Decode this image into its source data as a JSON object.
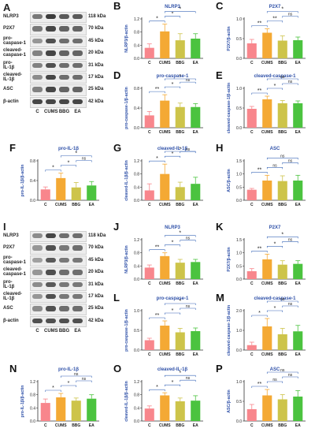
{
  "colors": {
    "C": "#f8868c",
    "CUMS": "#f4a934",
    "BBG": "#cdc44a",
    "EA": "#4bc33f",
    "sig_line": "#3a67b8",
    "title": "#2e50a8",
    "axis_label": "#2e50a8"
  },
  "western_blot_1": {
    "letter": "A",
    "labels": [
      "NLRP3",
      "P2X7",
      "pro-caspase-1",
      "cleaved-caspase-1",
      "pro-IL-1β",
      "cleaved-IL-1β",
      "ASC",
      "β-actin"
    ],
    "label_lines": [
      [
        "NLRP3"
      ],
      [
        "P2X7"
      ],
      [
        "pro-",
        "caspase-1"
      ],
      [
        "cleaved-",
        "caspase-1"
      ],
      [
        "pro-",
        "IL-1β"
      ],
      [
        "cleaved-",
        "IL-1β"
      ],
      [
        "ASC"
      ],
      [
        "β-actin"
      ]
    ],
    "kda": [
      "118 kDa",
      "70 kDa",
      "45 kDa",
      "20 kDa",
      "31 kDa",
      "17 kDa",
      "25 kDa",
      "42 kDa"
    ],
    "lanes": [
      "C",
      "CUMS",
      "BBG",
      "EA"
    ],
    "intensities": [
      [
        0.55,
        0.85,
        0.7,
        0.7
      ],
      [
        0.55,
        0.8,
        0.65,
        0.65
      ],
      [
        0.4,
        0.75,
        0.6,
        0.6
      ],
      [
        0.5,
        0.8,
        0.65,
        0.65
      ],
      [
        0.5,
        0.75,
        0.6,
        0.6
      ],
      [
        0.45,
        0.8,
        0.6,
        0.6
      ],
      [
        0.5,
        0.8,
        0.65,
        0.65
      ],
      [
        0.8,
        0.8,
        0.8,
        0.8
      ]
    ]
  },
  "western_blot_2": {
    "letter": "I",
    "labels": [
      "NLRP3",
      "P2X7",
      "pro-caspase-1",
      "cleaved-caspase-1",
      "pro-IL-1β",
      "cleaved-IL-1β",
      "ASC",
      "β-actin"
    ],
    "label_lines": [
      [
        "NLRP3"
      ],
      [
        "P2X7"
      ],
      [
        "pro-",
        "caspase-1"
      ],
      [
        "cleaved-",
        "caspase-1"
      ],
      [
        "pro-",
        "IL-1β"
      ],
      [
        "cleaved-",
        "IL-1β"
      ],
      [
        "ASC"
      ],
      [
        "β-actin"
      ]
    ],
    "kda": [
      "118 kDa",
      "70 kDa",
      "45 kDa",
      "20 kDa",
      "31 kDa",
      "17 kDa",
      "25 kDa",
      "42 kDa"
    ],
    "lanes": [
      "C",
      "CUMS",
      "BBG",
      "EA"
    ],
    "intensities": [
      [
        0.45,
        0.8,
        0.6,
        0.6
      ],
      [
        0.4,
        0.75,
        0.55,
        0.6
      ],
      [
        0.35,
        0.7,
        0.55,
        0.55
      ],
      [
        0.4,
        0.75,
        0.6,
        0.6
      ],
      [
        0.45,
        0.7,
        0.55,
        0.55
      ],
      [
        0.4,
        0.75,
        0.55,
        0.55
      ],
      [
        0.45,
        0.75,
        0.6,
        0.6
      ],
      [
        0.75,
        0.75,
        0.75,
        0.75
      ]
    ]
  },
  "chart_data": [
    {
      "letter": "B",
      "type": "bar",
      "title": "NLRP3",
      "ylabel": "NLRP3/β-actin",
      "categories": [
        "C",
        "CUMS",
        "BBG",
        "EA"
      ],
      "values": [
        0.32,
        0.82,
        0.55,
        0.6
      ],
      "errors": [
        0.12,
        0.22,
        0.2,
        0.15
      ],
      "ylim": [
        0,
        1.2
      ],
      "yticks": [
        0.0,
        0.4,
        0.8,
        1.2
      ],
      "sig": [
        {
          "a": 0,
          "b": 1,
          "label": "*"
        },
        {
          "a": 1,
          "b": 2,
          "label": "*"
        },
        {
          "a": 1,
          "b": 3,
          "label": "*"
        }
      ]
    },
    {
      "letter": "C",
      "type": "bar",
      "title": "P2X7",
      "ylabel": "P2X7/β-actin",
      "categories": [
        "C",
        "CUMS",
        "BBG",
        "EA"
      ],
      "values": [
        0.38,
        0.65,
        0.45,
        0.46
      ],
      "errors": [
        0.1,
        0.1,
        0.12,
        0.08
      ],
      "ylim": [
        0,
        1.0
      ],
      "yticks": [
        0.0,
        0.5,
        1.0
      ],
      "sig": [
        {
          "a": 0,
          "b": 1,
          "label": "**"
        },
        {
          "a": 1,
          "b": 2,
          "label": "**"
        },
        {
          "a": 2,
          "b": 3,
          "label": "ns"
        },
        {
          "a": 1,
          "b": 3,
          "label": "*"
        }
      ]
    },
    {
      "letter": "D",
      "type": "bar",
      "title": "pro-caspase-1",
      "ylabel": "pro-caspase-1/β-actin",
      "categories": [
        "C",
        "CUMS",
        "BBG",
        "EA"
      ],
      "values": [
        0.25,
        0.55,
        0.42,
        0.42
      ],
      "errors": [
        0.08,
        0.12,
        0.08,
        0.07
      ],
      "ylim": [
        0,
        0.8
      ],
      "yticks": [
        0.0,
        0.4,
        0.8
      ],
      "sig": [
        {
          "a": 0,
          "b": 1,
          "label": "**"
        },
        {
          "a": 1,
          "b": 2,
          "label": "*"
        },
        {
          "a": 2,
          "b": 3,
          "label": "ns"
        },
        {
          "a": 1,
          "b": 3,
          "label": "*"
        }
      ]
    },
    {
      "letter": "E",
      "type": "bar",
      "title": "cleaved-caspase-1",
      "ylabel": "cleaved-caspase-1/β-actin",
      "categories": [
        "C",
        "CUMS",
        "BBG",
        "EA"
      ],
      "values": [
        0.48,
        0.72,
        0.62,
        0.62
      ],
      "errors": [
        0.06,
        0.08,
        0.07,
        0.06
      ],
      "ylim": [
        0,
        1.0
      ],
      "yticks": [
        0.0,
        0.5,
        1.0
      ],
      "sig": [
        {
          "a": 0,
          "b": 1,
          "label": "**"
        },
        {
          "a": 1,
          "b": 2,
          "label": "*"
        },
        {
          "a": 2,
          "b": 3,
          "label": "ns"
        },
        {
          "a": 1,
          "b": 3,
          "label": "ns"
        }
      ]
    },
    {
      "letter": "F",
      "type": "bar",
      "title": "pro-IL-1β",
      "ylabel": "pro-IL-1β/β-actin",
      "categories": [
        "C",
        "CUMS",
        "BBG",
        "EA"
      ],
      "values": [
        0.22,
        0.45,
        0.26,
        0.3
      ],
      "errors": [
        0.05,
        0.1,
        0.1,
        0.08
      ],
      "ylim": [
        0,
        0.8
      ],
      "yticks": [
        0.0,
        0.4,
        0.8
      ],
      "sig": [
        {
          "a": 0,
          "b": 1,
          "label": "*"
        },
        {
          "a": 1,
          "b": 2,
          "label": "*"
        },
        {
          "a": 2,
          "b": 3,
          "label": "ns"
        },
        {
          "a": 1,
          "b": 3,
          "label": "*"
        }
      ]
    },
    {
      "letter": "G",
      "type": "bar",
      "title": "cleaved-IL-1β",
      "ylabel": "cleaved-IL-1β/β-actin",
      "categories": [
        "C",
        "CUMS",
        "BBG",
        "EA"
      ],
      "values": [
        0.3,
        0.8,
        0.4,
        0.5
      ],
      "errors": [
        0.2,
        0.3,
        0.15,
        0.2
      ],
      "ylim": [
        0,
        1.2
      ],
      "yticks": [
        0.0,
        0.4,
        0.8,
        1.2
      ],
      "sig": [
        {
          "a": 0,
          "b": 1,
          "label": "*"
        },
        {
          "a": 1,
          "b": 2,
          "label": "*"
        },
        {
          "a": 2,
          "b": 3,
          "label": "ns"
        },
        {
          "a": 1,
          "b": 3,
          "label": "*"
        }
      ]
    },
    {
      "letter": "H",
      "type": "bar",
      "title": "ASC",
      "ylabel": "ASC/β-actin",
      "categories": [
        "C",
        "CUMS",
        "BBG",
        "EA"
      ],
      "values": [
        0.4,
        0.75,
        0.73,
        0.75
      ],
      "errors": [
        0.05,
        0.2,
        0.2,
        0.2
      ],
      "ylim": [
        0,
        1.5
      ],
      "yticks": [
        0.0,
        0.5,
        1.0,
        1.5
      ],
      "sig": [
        {
          "a": 0,
          "b": 1,
          "label": "**"
        },
        {
          "a": 1,
          "b": 2,
          "label": "ns"
        },
        {
          "a": 2,
          "b": 3,
          "label": "ns"
        },
        {
          "a": 1,
          "b": 3,
          "label": "ns"
        }
      ]
    },
    {
      "letter": "J",
      "type": "bar",
      "title": "NLRP3",
      "ylabel": "NLRP3/β-actin",
      "categories": [
        "C",
        "CUMS",
        "BBG",
        "EA"
      ],
      "values": [
        0.35,
        0.7,
        0.5,
        0.52
      ],
      "errors": [
        0.08,
        0.1,
        0.1,
        0.08
      ],
      "ylim": [
        0,
        1.2
      ],
      "yticks": [
        0.0,
        0.4,
        0.8,
        1.2
      ],
      "sig": [
        {
          "a": 0,
          "b": 1,
          "label": "**"
        },
        {
          "a": 1,
          "b": 2,
          "label": "*"
        },
        {
          "a": 2,
          "b": 3,
          "label": "ns"
        },
        {
          "a": 1,
          "b": 3,
          "label": "*"
        }
      ]
    },
    {
      "letter": "K",
      "type": "bar",
      "title": "P2X7",
      "ylabel": "P2X7/β-actin",
      "categories": [
        "C",
        "CUMS",
        "BBG",
        "EA"
      ],
      "values": [
        0.3,
        0.75,
        0.55,
        0.58
      ],
      "errors": [
        0.1,
        0.2,
        0.15,
        0.12
      ],
      "ylim": [
        0,
        1.5
      ],
      "yticks": [
        0.0,
        0.5,
        1.0,
        1.5
      ],
      "sig": [
        {
          "a": 0,
          "b": 1,
          "label": "**"
        },
        {
          "a": 1,
          "b": 2,
          "label": "*"
        },
        {
          "a": 2,
          "b": 3,
          "label": "ns"
        },
        {
          "a": 1,
          "b": 3,
          "label": "*"
        }
      ]
    },
    {
      "letter": "L",
      "type": "bar",
      "title": "pro-caspase-1",
      "ylabel": "pro-caspase-1/β-actin",
      "categories": [
        "C",
        "CUMS",
        "BBG",
        "EA"
      ],
      "values": [
        0.25,
        0.62,
        0.45,
        0.48
      ],
      "errors": [
        0.05,
        0.12,
        0.1,
        0.08
      ],
      "ylim": [
        0,
        1.0
      ],
      "yticks": [
        0.0,
        0.5,
        1.0
      ],
      "sig": [
        {
          "a": 0,
          "b": 1,
          "label": "**"
        },
        {
          "a": 1,
          "b": 2,
          "label": "*"
        },
        {
          "a": 2,
          "b": 3,
          "label": "ns"
        },
        {
          "a": 1,
          "b": 3,
          "label": "*"
        }
      ]
    },
    {
      "letter": "M",
      "type": "bar",
      "title": "cleaved-caspase-1",
      "ylabel": "cleaved-caspase-1/β-actin",
      "categories": [
        "C",
        "CUMS",
        "BBG",
        "EA"
      ],
      "values": [
        0.25,
        1.2,
        0.8,
        0.95
      ],
      "errors": [
        0.15,
        0.4,
        0.3,
        0.3
      ],
      "ylim": [
        0,
        2.0
      ],
      "yticks": [
        0.0,
        1.0,
        2.0
      ],
      "sig": [
        {
          "a": 0,
          "b": 1,
          "label": "*"
        },
        {
          "a": 1,
          "b": 2,
          "label": "*"
        },
        {
          "a": 2,
          "b": 3,
          "label": "ns"
        },
        {
          "a": 1,
          "b": 3,
          "label": "ns"
        }
      ]
    },
    {
      "letter": "N",
      "type": "bar",
      "title": "pro-IL-1β",
      "ylabel": "pro-IL-1β/β-actin",
      "categories": [
        "C",
        "CUMS",
        "BBG",
        "EA"
      ],
      "values": [
        0.55,
        0.72,
        0.62,
        0.68
      ],
      "errors": [
        0.12,
        0.12,
        0.08,
        0.12
      ],
      "ylim": [
        0,
        1.2
      ],
      "yticks": [
        0.0,
        0.4,
        0.8,
        1.2
      ],
      "sig": [
        {
          "a": 0,
          "b": 1,
          "label": "*"
        },
        {
          "a": 1,
          "b": 2,
          "label": "*"
        },
        {
          "a": 2,
          "b": 3,
          "label": "ns"
        },
        {
          "a": 1,
          "b": 3,
          "label": "ns"
        }
      ]
    },
    {
      "letter": "O",
      "type": "bar",
      "title": "cleaved-IL-1β",
      "ylabel": "cleaved-IL-1β/β-actin",
      "categories": [
        "C",
        "CUMS",
        "BBG",
        "EA"
      ],
      "values": [
        0.38,
        0.78,
        0.6,
        0.62
      ],
      "errors": [
        0.08,
        0.08,
        0.1,
        0.15
      ],
      "ylim": [
        0,
        1.2
      ],
      "yticks": [
        0.0,
        0.4,
        0.8,
        1.2
      ],
      "sig": [
        {
          "a": 0,
          "b": 1,
          "label": "*"
        },
        {
          "a": 1,
          "b": 2,
          "label": "*"
        },
        {
          "a": 2,
          "b": 3,
          "label": "ns"
        },
        {
          "a": 1,
          "b": 3,
          "label": "*"
        }
      ]
    },
    {
      "letter": "P",
      "type": "bar",
      "title": "ASC",
      "ylabel": "ASC/β-actin",
      "categories": [
        "C",
        "CUMS",
        "BBG",
        "EA"
      ],
      "values": [
        0.3,
        0.65,
        0.55,
        0.62
      ],
      "errors": [
        0.12,
        0.15,
        0.12,
        0.15
      ],
      "ylim": [
        0,
        1.0
      ],
      "yticks": [
        0.0,
        0.5,
        1.0
      ],
      "sig": [
        {
          "a": 0,
          "b": 1,
          "label": "**"
        },
        {
          "a": 1,
          "b": 2,
          "label": "ns"
        },
        {
          "a": 2,
          "b": 3,
          "label": "ns"
        },
        {
          "a": 1,
          "b": 3,
          "label": "ns"
        }
      ]
    }
  ]
}
